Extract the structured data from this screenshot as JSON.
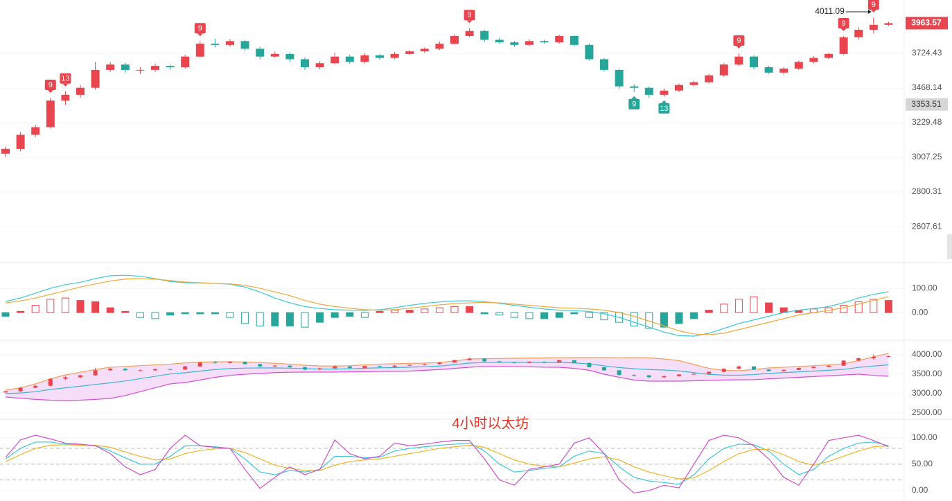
{
  "chart_data": [
    {
      "type": "candlestick",
      "log_scale": true,
      "ylim": [
        2425,
        4157
      ],
      "yticks": [
        3724.43,
        3468.14,
        3229.48,
        3007.25,
        2800.31,
        2607.61
      ],
      "up_color": "#e8454f",
      "down_color": "#26a69a",
      "open": [
        3030,
        3060,
        3150,
        3200,
        3380,
        3420,
        3470,
        3600,
        3640,
        3600,
        3600,
        3630,
        3620,
        3700,
        3800,
        3790,
        3820,
        3760,
        3700,
        3720,
        3680,
        3620,
        3650,
        3700,
        3660,
        3710,
        3690,
        3720,
        3740,
        3760,
        3800,
        3860,
        3900,
        3830,
        3810,
        3790,
        3820,
        3810,
        3860,
        3790,
        3680,
        3600,
        3480,
        3470,
        3420,
        3450,
        3490,
        3510,
        3560,
        3640,
        3700,
        3620,
        3580,
        3610,
        3660,
        3690,
        3720,
        3850,
        3910,
        3950
      ],
      "high": [
        3075,
        3170,
        3215,
        3400,
        3445,
        3490,
        3660,
        3660,
        3655,
        3620,
        3645,
        3640,
        3715,
        3820,
        3840,
        3835,
        3830,
        3775,
        3740,
        3735,
        3695,
        3665,
        3730,
        3715,
        3725,
        3720,
        3735,
        3750,
        3770,
        3815,
        3875,
        3925,
        3910,
        3845,
        3820,
        3835,
        3830,
        3870,
        3865,
        3800,
        3690,
        3610,
        3495,
        3480,
        3465,
        3500,
        3520,
        3570,
        3650,
        3725,
        3710,
        3630,
        3620,
        3670,
        3705,
        3730,
        3860,
        3930,
        4011.09,
        3975
      ],
      "low": [
        3010,
        3045,
        3135,
        3190,
        3350,
        3400,
        3455,
        3585,
        3580,
        3570,
        3585,
        3600,
        3610,
        3690,
        3770,
        3775,
        3745,
        3680,
        3690,
        3660,
        3600,
        3605,
        3640,
        3645,
        3650,
        3675,
        3680,
        3710,
        3730,
        3750,
        3790,
        3850,
        3815,
        3800,
        3775,
        3780,
        3800,
        3800,
        3780,
        3670,
        3590,
        3460,
        3440,
        3400,
        3410,
        3440,
        3480,
        3500,
        3550,
        3630,
        3605,
        3570,
        3565,
        3600,
        3650,
        3680,
        3710,
        3830,
        3880,
        3940
      ],
      "close": [
        3060,
        3150,
        3200,
        3380,
        3420,
        3470,
        3600,
        3640,
        3600,
        3600,
        3630,
        3620,
        3700,
        3800,
        3790,
        3820,
        3760,
        3700,
        3720,
        3680,
        3620,
        3650,
        3700,
        3660,
        3710,
        3690,
        3720,
        3740,
        3760,
        3800,
        3860,
        3900,
        3830,
        3810,
        3790,
        3820,
        3810,
        3860,
        3790,
        3680,
        3600,
        3480,
        3470,
        3420,
        3450,
        3490,
        3510,
        3560,
        3640,
        3700,
        3620,
        3580,
        3610,
        3660,
        3690,
        3720,
        3850,
        3910,
        3950,
        3963.57
      ],
      "markers": [
        {
          "count": 9,
          "index": 3,
          "position": "above"
        },
        {
          "count": 13,
          "index": 4,
          "position": "above"
        },
        {
          "count": 9,
          "index": 13,
          "position": "above"
        },
        {
          "count": 9,
          "index": 31,
          "position": "above"
        },
        {
          "count": 9,
          "index": 42,
          "position": "below"
        },
        {
          "count": 13,
          "index": 44,
          "position": "below"
        },
        {
          "count": 9,
          "index": 49,
          "position": "above"
        },
        {
          "count": 9,
          "index": 56,
          "position": "above"
        },
        {
          "count": 9,
          "index": 58,
          "position": "above"
        }
      ],
      "high_label": 4011.09,
      "last_price": 3963.57,
      "marked_price": 3353.51
    },
    {
      "type": "macd",
      "ylim": [
        -111,
        203
      ],
      "yticks": [
        {
          "value": 100,
          "label": "100.00"
        },
        {
          "value": 0,
          "label": "0.00"
        }
      ],
      "up_color": "#e8454f",
      "down_color": "#26a69a",
      "histogram": [
        -15,
        5,
        30,
        55,
        60,
        50,
        45,
        20,
        5,
        -20,
        -25,
        -10,
        -5,
        -5,
        -5,
        -20,
        -45,
        -55,
        -55,
        -55,
        -60,
        -40,
        -20,
        -15,
        -20,
        5,
        10,
        10,
        15,
        20,
        25,
        25,
        -5,
        -10,
        -20,
        -25,
        -25,
        -20,
        -5,
        -20,
        -30,
        -40,
        -55,
        -65,
        -60,
        -45,
        -25,
        10,
        35,
        55,
        65,
        40,
        20,
        10,
        15,
        20,
        30,
        45,
        55,
        50
      ],
      "series": [
        {
          "color": "#3cc8d8",
          "values": [
            46,
            60,
            80,
            100,
            115,
            125,
            140,
            152,
            154,
            150,
            140,
            128,
            123,
            122,
            120,
            117,
            105,
            85,
            60,
            40,
            25,
            17,
            12,
            10,
            9,
            12,
            20,
            30,
            38,
            44,
            48,
            49,
            45,
            38,
            30,
            22,
            15,
            10,
            8,
            5,
            -5,
            -20,
            -40,
            -60,
            -80,
            -95,
            -97,
            -85,
            -65,
            -45,
            -30,
            -15,
            0,
            10,
            17,
            25,
            40,
            60,
            75,
            86
          ]
        },
        {
          "color": "#f2a93b",
          "values": [
            40,
            48,
            60,
            75,
            90,
            105,
            118,
            130,
            138,
            140,
            138,
            132,
            126,
            123,
            120,
            118,
            112,
            100,
            85,
            70,
            50,
            35,
            25,
            18,
            12,
            10,
            12,
            18,
            25,
            32,
            37,
            40,
            42,
            40,
            35,
            30,
            25,
            20,
            18,
            15,
            10,
            0,
            -15,
            -35,
            -55,
            -75,
            -88,
            -91,
            -85,
            -70,
            -55,
            -40,
            -25,
            -10,
            0,
            9,
            20,
            35,
            50,
            66
          ]
        }
      ]
    },
    {
      "type": "bollinger",
      "ylim": [
        2357,
        4357
      ],
      "yticks": [
        {
          "value": 4000,
          "label": "4000.00"
        },
        {
          "value": 3500,
          "label": "3500.00"
        },
        {
          "value": 3000,
          "label": "3000.00"
        },
        {
          "value": 2500,
          "label": "2500.00"
        }
      ],
      "band_fill": "#f7def8",
      "series": [
        {
          "color": "#f2a05a",
          "values": [
            3089,
            3150,
            3250,
            3380,
            3480,
            3550,
            3620,
            3679,
            3700,
            3720,
            3740,
            3760,
            3790,
            3810,
            3821,
            3821,
            3815,
            3800,
            3780,
            3760,
            3730,
            3714,
            3710,
            3720,
            3740,
            3760,
            3770,
            3780,
            3786,
            3800,
            3840,
            3893,
            3900,
            3905,
            3910,
            3915,
            3920,
            3925,
            3929,
            3929,
            3929,
            3925,
            3929,
            3920,
            3893,
            3850,
            3750,
            3650,
            3600,
            3589,
            3620,
            3660,
            3680,
            3700,
            3720,
            3740,
            3768,
            3850,
            3950,
            4036
          ]
        },
        {
          "color": "#3ab5d4",
          "values": [
            3000,
            3015,
            3050,
            3105,
            3150,
            3190,
            3235,
            3277,
            3325,
            3385,
            3445,
            3505,
            3538,
            3580,
            3620,
            3645,
            3657,
            3660,
            3660,
            3655,
            3642,
            3634,
            3632,
            3640,
            3652,
            3665,
            3670,
            3680,
            3693,
            3710,
            3745,
            3786,
            3800,
            3802,
            3805,
            3802,
            3800,
            3802,
            3790,
            3765,
            3715,
            3672,
            3640,
            3620,
            3607,
            3585,
            3540,
            3495,
            3475,
            3473,
            3490,
            3520,
            3540,
            3560,
            3580,
            3600,
            3624,
            3675,
            3710,
            3741
          ]
        },
        {
          "color": "#d44fd6",
          "values": [
            2911,
            2880,
            2850,
            2830,
            2821,
            2830,
            2850,
            2875,
            2950,
            3050,
            3150,
            3250,
            3286,
            3350,
            3420,
            3470,
            3500,
            3520,
            3540,
            3550,
            3554,
            3554,
            3555,
            3560,
            3565,
            3570,
            3571,
            3580,
            3600,
            3620,
            3650,
            3679,
            3700,
            3700,
            3700,
            3690,
            3680,
            3679,
            3650,
            3600,
            3500,
            3420,
            3350,
            3321,
            3321,
            3321,
            3330,
            3340,
            3350,
            3357,
            3360,
            3380,
            3400,
            3420,
            3440,
            3460,
            3480,
            3500,
            3470,
            3446
          ]
        }
      ]
    },
    {
      "type": "kdj",
      "ylim": [
        -16,
        134
      ],
      "yticks": [
        {
          "value": 100,
          "label": "100.00"
        },
        {
          "value": 50,
          "label": "50.00"
        },
        {
          "value": 0,
          "label": "0.00"
        }
      ],
      "reference_lines": [
        80,
        50,
        20
      ],
      "annotation": "4小时以太坊",
      "series": [
        {
          "color": "#3cc8d8",
          "values": [
            60,
            80,
            92,
            92,
            88,
            87,
            85,
            75,
            62,
            50,
            50,
            65,
            85,
            85,
            83,
            80,
            60,
            35,
            30,
            38,
            35,
            40,
            65,
            65,
            62,
            63,
            75,
            80,
            83,
            86,
            88,
            90,
            75,
            50,
            35,
            38,
            42,
            45,
            65,
            75,
            70,
            45,
            25,
            18,
            15,
            12,
            30,
            60,
            80,
            88,
            87,
            75,
            50,
            30,
            40,
            65,
            80,
            90,
            92,
            85
          ]
        },
        {
          "color": "#f0b429",
          "values": [
            55,
            68,
            80,
            86,
            87,
            86,
            86,
            82,
            73,
            65,
            58,
            60,
            70,
            76,
            79,
            80,
            72,
            60,
            48,
            42,
            38,
            38,
            48,
            55,
            58,
            60,
            65,
            70,
            75,
            80,
            83,
            86,
            82,
            70,
            58,
            50,
            46,
            45,
            52,
            60,
            64,
            58,
            45,
            35,
            28,
            22,
            24,
            38,
            55,
            70,
            78,
            78,
            68,
            55,
            48,
            55,
            65,
            75,
            83,
            85
          ]
        },
        {
          "color": "#d04fc8",
          "values": [
            63,
            96,
            105,
            98,
            90,
            88,
            85,
            70,
            45,
            30,
            40,
            80,
            105,
            85,
            82,
            80,
            40,
            4,
            25,
            45,
            30,
            40,
            96,
            70,
            60,
            65,
            90,
            85,
            88,
            92,
            95,
            95,
            60,
            20,
            10,
            40,
            45,
            50,
            90,
            100,
            70,
            20,
            -5,
            0,
            10,
            5,
            50,
            95,
            105,
            100,
            85,
            60,
            25,
            10,
            50,
            95,
            100,
            105,
            95,
            83
          ]
        }
      ]
    }
  ]
}
